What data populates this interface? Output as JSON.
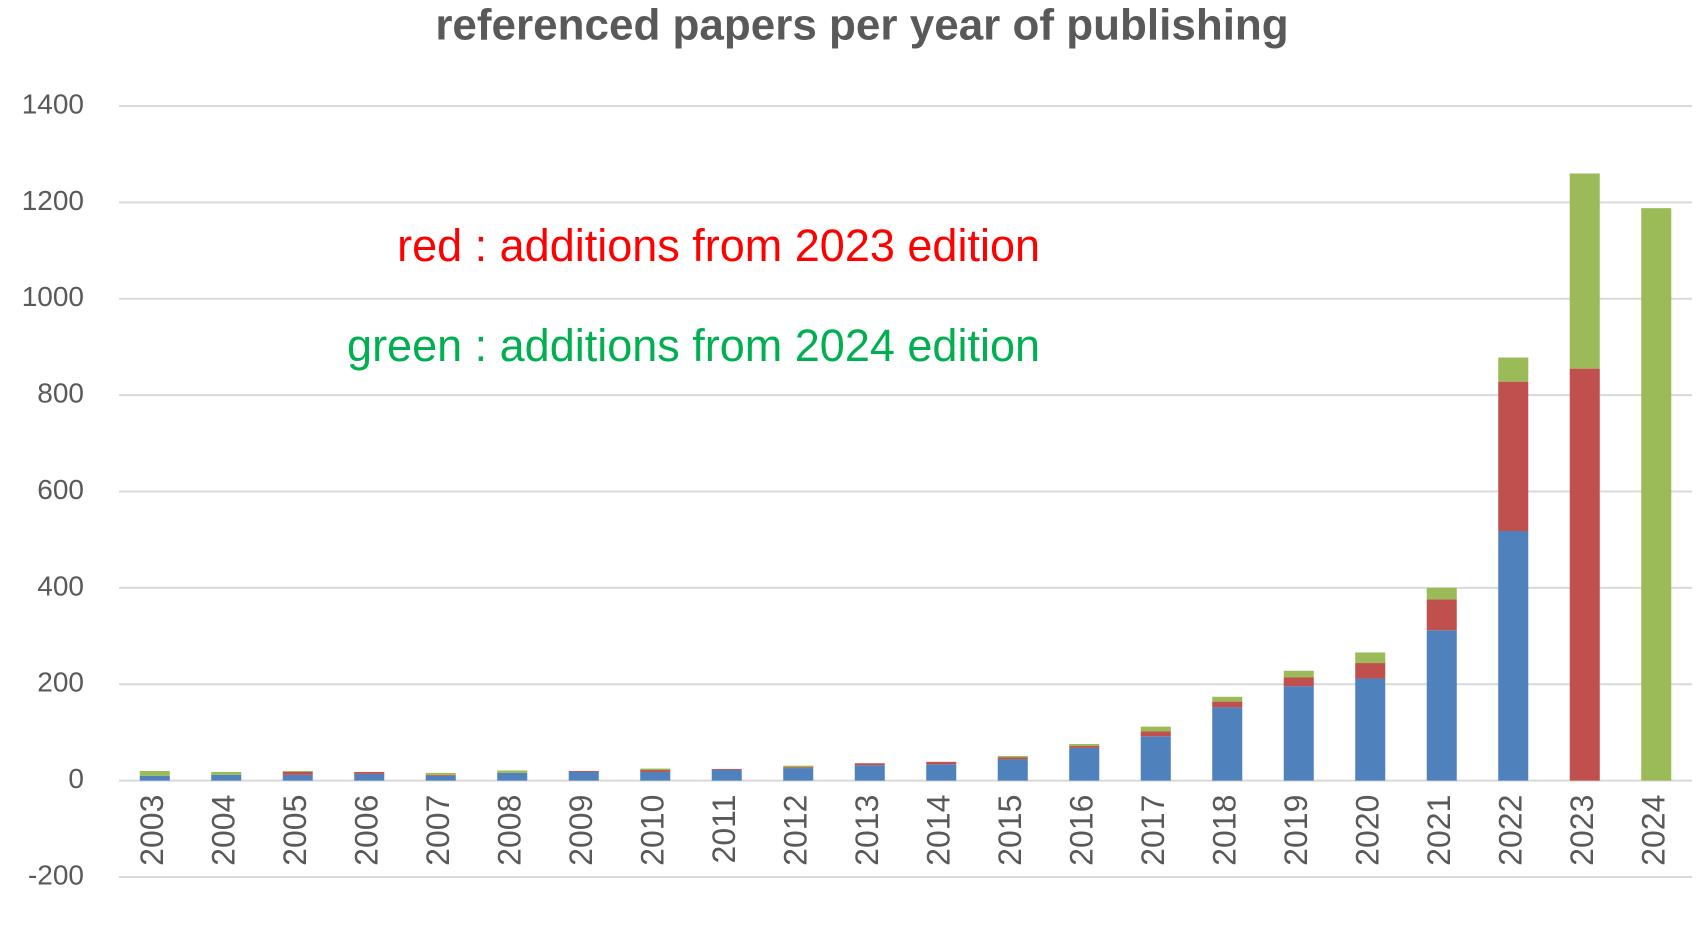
{
  "chart_data": {
    "type": "stacked_bar",
    "title": "referenced papers per year of publishing",
    "annotations": [
      {
        "text": "red : additions from 2023 edition",
        "color": "#ff0000"
      },
      {
        "text": "green : additions from 2024 edition",
        "color": "#00b050"
      }
    ],
    "categories": [
      "2003",
      "2004",
      "2005",
      "2006",
      "2007",
      "2008",
      "2009",
      "2010",
      "2011",
      "2012",
      "2013",
      "2014",
      "2015",
      "2016",
      "2017",
      "2018",
      "2019",
      "2020",
      "2021",
      "2022",
      "2023",
      "2024"
    ],
    "series": [
      {
        "color": "#4f81bd",
        "values": [
          10,
          12,
          12,
          14,
          10,
          16,
          18,
          18,
          22,
          26,
          32,
          34,
          44,
          68,
          92,
          152,
          196,
          212,
          312,
          518,
          0,
          0
        ]
      },
      {
        "color": "#c0504d",
        "values": [
          0,
          0,
          6,
          4,
          2,
          0,
          2,
          4,
          2,
          2,
          4,
          5,
          4,
          4,
          10,
          12,
          18,
          32,
          64,
          310,
          855,
          0
        ]
      },
      {
        "color": "#9bbb59",
        "values": [
          10,
          6,
          2,
          0,
          4,
          5,
          0,
          3,
          0,
          3,
          0,
          0,
          3,
          4,
          10,
          10,
          14,
          22,
          24,
          50,
          405,
          1188
        ]
      }
    ],
    "ylim": [
      -200,
      1400
    ],
    "yticks": [
      -200,
      0,
      200,
      400,
      600,
      800,
      1000,
      1200,
      1400
    ],
    "grid": true
  }
}
